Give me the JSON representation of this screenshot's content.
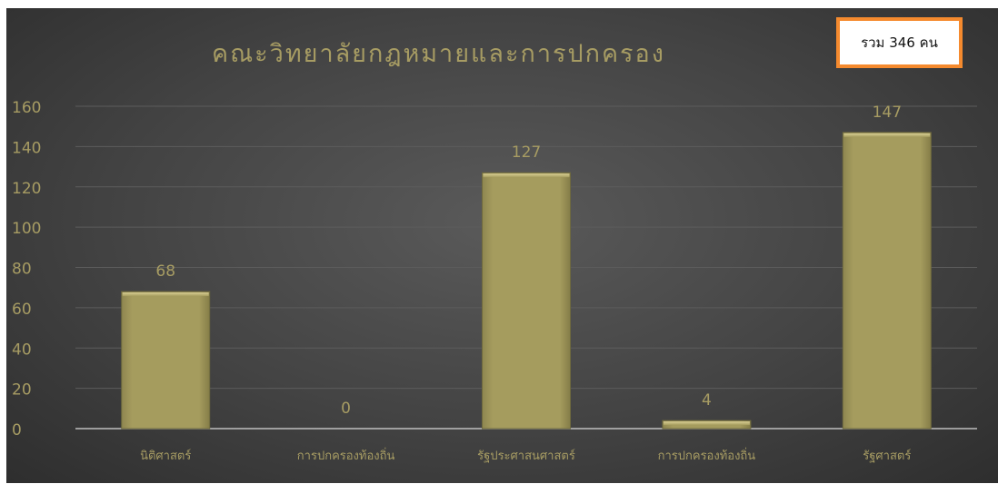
{
  "total_label": "รวม 346 คน",
  "colors": {
    "bar_fill": "#a39a5c",
    "text_gold": "#a79c63",
    "background": "#474747",
    "accent_border": "#f58a2e"
  },
  "chart_data": {
    "type": "bar",
    "title": "คณะวิทยาลัยกฎหมายและการปกครอง",
    "categories": [
      "นิติศาสตร์",
      "การปกครองท้องถิ่น",
      "รัฐประศาสนศาสตร์",
      "การปกครองท้องถิ่น",
      "รัฐศาสตร์"
    ],
    "values": [
      68,
      0,
      127,
      4,
      147
    ],
    "ylim": [
      0,
      160
    ],
    "yticks": [
      0,
      20,
      40,
      60,
      80,
      100,
      120,
      140,
      160
    ],
    "xlabel": "",
    "ylabel": "",
    "grid": true,
    "data_labels": true
  }
}
